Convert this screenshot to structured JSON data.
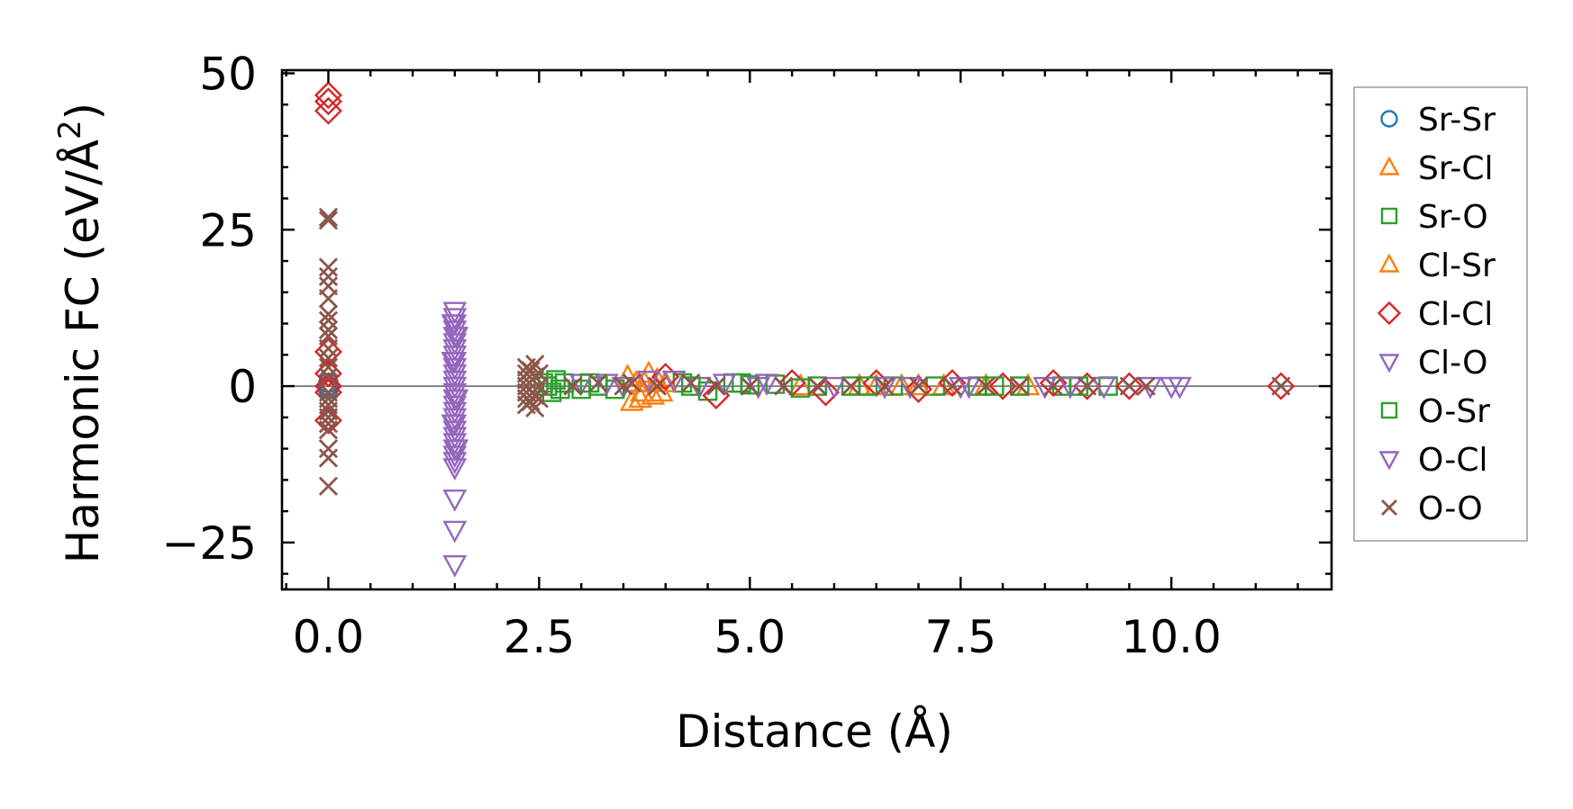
{
  "chart_data": {
    "type": "scatter",
    "title": "",
    "xlabel": "Distance (Å)",
    "ylabel_main": "Harmonic FC (eV/Å",
    "ylabel_sup": "2",
    "ylabel_close": ")",
    "xlim": [
      -0.55,
      11.9
    ],
    "ylim": [
      -32.5,
      50.5
    ],
    "xticks": [
      0.0,
      2.5,
      5.0,
      7.5,
      10.0
    ],
    "xtick_labels": [
      "0.0",
      "2.5",
      "5.0",
      "7.5",
      "10.0"
    ],
    "yticks": [
      -25,
      0,
      25,
      50
    ],
    "ytick_labels": [
      "−25",
      "0",
      "25",
      "50"
    ],
    "x_minor_step": 0.5,
    "y_minor_step": 5,
    "zero_line": 0,
    "legend_position": "outside-right",
    "series": [
      {
        "name": "Sr-Sr",
        "marker": "circle",
        "color": "#1f77b4",
        "points": [
          [
            0,
            0
          ],
          [
            0,
            0.5
          ],
          [
            0,
            -0.5
          ]
        ]
      },
      {
        "name": "Sr-Cl",
        "marker": "triangle-up",
        "color": "#ff7f0e",
        "points": [
          [
            3.55,
            1.5
          ],
          [
            3.6,
            -2.5
          ],
          [
            3.7,
            -2
          ],
          [
            3.75,
            0.5
          ],
          [
            3.8,
            2
          ],
          [
            3.85,
            -1.5
          ],
          [
            3.9,
            1
          ],
          [
            3.95,
            -1
          ],
          [
            6.3,
            0
          ],
          [
            6.8,
            0
          ],
          [
            7.3,
            0
          ],
          [
            7.8,
            0
          ],
          [
            8.3,
            0
          ]
        ]
      },
      {
        "name": "Sr-O",
        "marker": "square",
        "color": "#2ca02c",
        "points": [
          [
            2.6,
            0
          ],
          [
            2.65,
            -1
          ],
          [
            2.7,
            1
          ],
          [
            2.8,
            0.5
          ],
          [
            3.0,
            -0.5
          ],
          [
            3.2,
            0
          ],
          [
            4.2,
            0.5
          ],
          [
            4.5,
            -0.8
          ],
          [
            4.8,
            0.5
          ],
          [
            5.0,
            0.2
          ],
          [
            5.3,
            0.3
          ],
          [
            5.8,
            0
          ],
          [
            6.2,
            0
          ],
          [
            6.7,
            0
          ],
          [
            7.2,
            0
          ],
          [
            7.7,
            0
          ],
          [
            8.2,
            0
          ],
          [
            8.7,
            0
          ],
          [
            9.25,
            0
          ]
        ]
      },
      {
        "name": "Cl-Sr",
        "marker": "triangle-up",
        "color": "#ff7f0e",
        "points": [
          [
            3.65,
            0.5
          ],
          [
            3.72,
            -1
          ],
          [
            4.0,
            0.5
          ],
          [
            5.6,
            0
          ],
          [
            6.5,
            0
          ],
          [
            7.0,
            0
          ]
        ]
      },
      {
        "name": "Cl-Cl",
        "marker": "diamond",
        "color": "#d62728",
        "points": [
          [
            0,
            46.5
          ],
          [
            0,
            45.5
          ],
          [
            0,
            44
          ],
          [
            0,
            5.5
          ],
          [
            0,
            2
          ],
          [
            0,
            0
          ],
          [
            0,
            -1
          ],
          [
            0,
            -5.5
          ],
          [
            4.0,
            1.5
          ],
          [
            4.6,
            -1.5
          ],
          [
            5.5,
            0.5
          ],
          [
            5.9,
            -1
          ],
          [
            6.5,
            0.5
          ],
          [
            7.0,
            -0.5
          ],
          [
            7.4,
            0.5
          ],
          [
            8.0,
            0
          ],
          [
            8.6,
            0.5
          ],
          [
            9.0,
            0
          ],
          [
            9.5,
            0
          ],
          [
            11.3,
            0
          ]
        ]
      },
      {
        "name": "Cl-O",
        "marker": "triangle-down",
        "color": "#9467bd",
        "points": [
          [
            1.5,
            12
          ],
          [
            1.5,
            11
          ],
          [
            1.5,
            10
          ],
          [
            1.5,
            9
          ],
          [
            1.5,
            8
          ],
          [
            1.5,
            7
          ],
          [
            1.5,
            6
          ],
          [
            1.5,
            5
          ],
          [
            1.5,
            4
          ],
          [
            1.5,
            3
          ],
          [
            1.5,
            2
          ],
          [
            1.5,
            1
          ],
          [
            1.5,
            0
          ],
          [
            1.5,
            -1
          ],
          [
            1.5,
            -2
          ],
          [
            1.5,
            -3
          ],
          [
            1.5,
            -4
          ],
          [
            1.5,
            -5
          ],
          [
            1.5,
            -6
          ],
          [
            1.5,
            -7
          ],
          [
            1.5,
            -8
          ],
          [
            1.5,
            -9
          ],
          [
            1.5,
            -10
          ],
          [
            1.5,
            -11
          ],
          [
            1.5,
            -12
          ],
          [
            1.5,
            -13
          ],
          [
            1.5,
            -18
          ],
          [
            1.5,
            -23
          ],
          [
            1.5,
            -28.5
          ],
          [
            3.0,
            0.5
          ],
          [
            3.5,
            0
          ],
          [
            4.1,
            1
          ],
          [
            4.4,
            0
          ],
          [
            5.2,
            0.5
          ],
          [
            6.0,
            0
          ],
          [
            6.9,
            0
          ],
          [
            7.6,
            0
          ],
          [
            8.5,
            0
          ],
          [
            9.2,
            0
          ],
          [
            9.75,
            0
          ]
        ]
      },
      {
        "name": "O-Sr",
        "marker": "square",
        "color": "#2ca02c",
        "points": [
          [
            2.55,
            0.5
          ],
          [
            2.75,
            -0.5
          ],
          [
            3.1,
            0.5
          ],
          [
            3.4,
            -0.5
          ],
          [
            4.3,
            0
          ],
          [
            4.9,
            0.5
          ],
          [
            5.6,
            -0.3
          ],
          [
            6.4,
            0
          ],
          [
            7.9,
            0
          ],
          [
            8.9,
            0
          ]
        ]
      },
      {
        "name": "O-Cl",
        "marker": "triangle-down",
        "color": "#9467bd",
        "points": [
          [
            1.48,
            10
          ],
          [
            1.52,
            8
          ],
          [
            1.48,
            4
          ],
          [
            1.52,
            -2
          ],
          [
            1.48,
            -6
          ],
          [
            1.52,
            -10
          ],
          [
            3.3,
            0.5
          ],
          [
            3.8,
            1
          ],
          [
            4.7,
            0.5
          ],
          [
            5.1,
            0
          ],
          [
            6.6,
            0
          ],
          [
            7.5,
            0
          ],
          [
            8.8,
            0
          ],
          [
            10.0,
            0
          ],
          [
            10.1,
            0
          ]
        ]
      },
      {
        "name": "O-O",
        "marker": "x",
        "color": "#8c564b",
        "points": [
          [
            0,
            27
          ],
          [
            0,
            26.5
          ],
          [
            0,
            19
          ],
          [
            0,
            17.5
          ],
          [
            0,
            16
          ],
          [
            0,
            14
          ],
          [
            0,
            11.5
          ],
          [
            0,
            10.5
          ],
          [
            0,
            9
          ],
          [
            0,
            8
          ],
          [
            0,
            6
          ],
          [
            0,
            4.5
          ],
          [
            0,
            3
          ],
          [
            0,
            1.5
          ],
          [
            0,
            -1
          ],
          [
            0,
            -2
          ],
          [
            0,
            -3
          ],
          [
            0,
            -4
          ],
          [
            0,
            -5
          ],
          [
            0,
            -6
          ],
          [
            0,
            -7
          ],
          [
            0,
            -10
          ],
          [
            0,
            -11.5
          ],
          [
            0,
            -16
          ],
          [
            2.35,
            3
          ],
          [
            2.35,
            2
          ],
          [
            2.35,
            1
          ],
          [
            2.35,
            0
          ],
          [
            2.35,
            -1
          ],
          [
            2.35,
            -2
          ],
          [
            2.35,
            -3
          ],
          [
            2.4,
            2.5
          ],
          [
            2.4,
            -2.5
          ],
          [
            2.45,
            3.5
          ],
          [
            2.45,
            -3.5
          ],
          [
            2.45,
            1.5
          ],
          [
            2.45,
            -1.5
          ],
          [
            2.5,
            2
          ],
          [
            2.5,
            -2
          ],
          [
            2.5,
            0
          ],
          [
            2.9,
            0
          ],
          [
            3.2,
            0.5
          ],
          [
            3.5,
            0
          ],
          [
            3.6,
            0.5
          ],
          [
            3.9,
            0
          ],
          [
            4.3,
            0.5
          ],
          [
            4.6,
            0
          ],
          [
            5.0,
            0
          ],
          [
            5.4,
            0
          ],
          [
            5.8,
            0
          ],
          [
            6.2,
            0
          ],
          [
            6.6,
            0
          ],
          [
            7.0,
            0
          ],
          [
            7.4,
            0
          ],
          [
            7.8,
            0
          ],
          [
            8.2,
            0
          ],
          [
            8.6,
            0
          ],
          [
            9.0,
            0
          ],
          [
            9.5,
            0
          ],
          [
            9.7,
            0
          ],
          [
            11.3,
            0
          ]
        ]
      }
    ]
  }
}
